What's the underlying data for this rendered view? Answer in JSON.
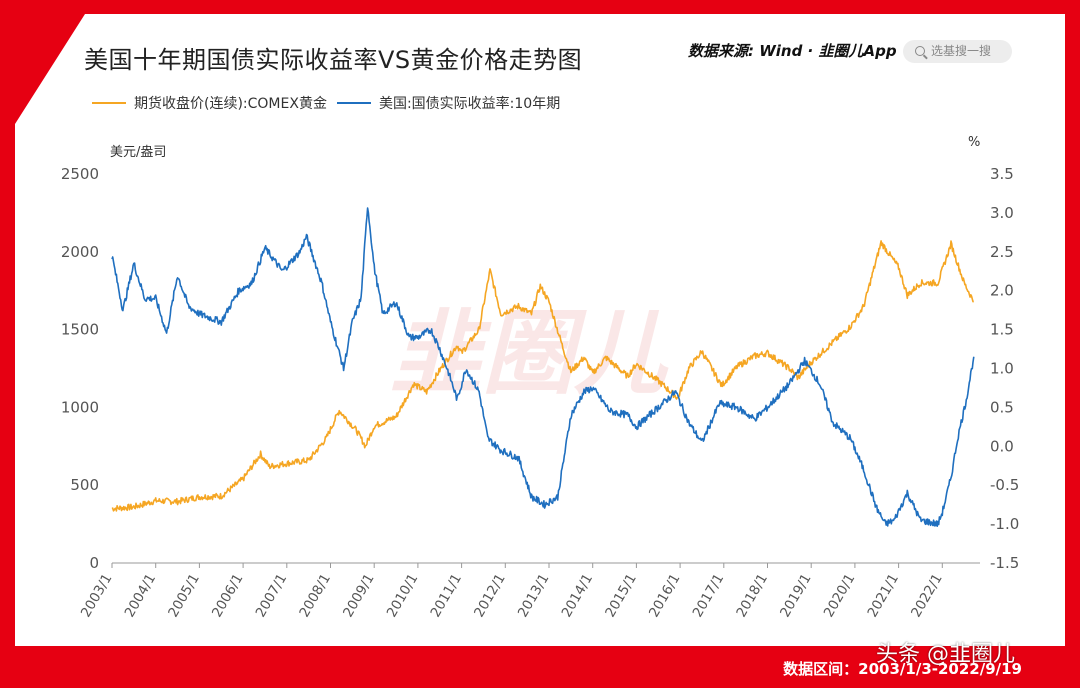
{
  "header": {
    "title": "美国十年期国债实际收益率VS黄金价格走势图",
    "source": "数据来源: Wind · 韭圈儿App",
    "search_placeholder": "选基搜一搜"
  },
  "footer": {
    "date_range": "数据区间：2003/1/3-2022/9/19",
    "credit": "头条 @韭圈儿"
  },
  "colors": {
    "gold": "#f5a623",
    "yield": "#1f6fbf",
    "brand_red": "#e60012"
  },
  "chart_data": {
    "type": "line",
    "title": "美国十年期国债实际收益率VS黄金价格走势图",
    "x_ticks": [
      "2003/1",
      "2004/1",
      "2005/1",
      "2006/1",
      "2007/1",
      "2008/1",
      "2009/1",
      "2010/1",
      "2011/1",
      "2012/1",
      "2013/1",
      "2014/1",
      "2015/1",
      "2016/1",
      "2017/1",
      "2018/1",
      "2019/1",
      "2020/1",
      "2021/1",
      "2022/1"
    ],
    "left_axis": {
      "label": "美元/盎司",
      "range": [
        0,
        2500
      ],
      "ticks": [
        "0",
        "500",
        "1000",
        "1500",
        "2000",
        "2500"
      ]
    },
    "right_axis": {
      "label": "%",
      "range": [
        -1.5,
        3.5
      ],
      "ticks": [
        "-1.5",
        "-1.0",
        "-0.5",
        "0.0",
        "0.5",
        "1.0",
        "1.5",
        "2.0",
        "2.5",
        "3.0",
        "3.5"
      ]
    },
    "legend_position": "top-left",
    "grid": false,
    "series": [
      {
        "name": "期货收盘价(连续):COMEX黄金",
        "axis": "left",
        "points": [
          [
            2003.0,
            350
          ],
          [
            2003.5,
            360
          ],
          [
            2004.0,
            400
          ],
          [
            2004.5,
            395
          ],
          [
            2005.0,
            425
          ],
          [
            2005.5,
            430
          ],
          [
            2006.0,
            540
          ],
          [
            2006.4,
            700
          ],
          [
            2006.6,
            620
          ],
          [
            2007.0,
            640
          ],
          [
            2007.5,
            660
          ],
          [
            2007.9,
            800
          ],
          [
            2008.2,
            980
          ],
          [
            2008.6,
            850
          ],
          [
            2008.8,
            750
          ],
          [
            2009.0,
            880
          ],
          [
            2009.5,
            940
          ],
          [
            2009.9,
            1150
          ],
          [
            2010.2,
            1100
          ],
          [
            2010.5,
            1240
          ],
          [
            2010.9,
            1400
          ],
          [
            2011.0,
            1350
          ],
          [
            2011.4,
            1500
          ],
          [
            2011.65,
            1880
          ],
          [
            2011.9,
            1600
          ],
          [
            2012.3,
            1650
          ],
          [
            2012.6,
            1600
          ],
          [
            2012.8,
            1780
          ],
          [
            2013.0,
            1680
          ],
          [
            2013.3,
            1400
          ],
          [
            2013.5,
            1230
          ],
          [
            2013.8,
            1320
          ],
          [
            2014.0,
            1220
          ],
          [
            2014.3,
            1320
          ],
          [
            2014.8,
            1200
          ],
          [
            2015.0,
            1280
          ],
          [
            2015.5,
            1170
          ],
          [
            2015.95,
            1060
          ],
          [
            2016.2,
            1250
          ],
          [
            2016.5,
            1360
          ],
          [
            2016.95,
            1140
          ],
          [
            2017.3,
            1260
          ],
          [
            2017.7,
            1330
          ],
          [
            2018.0,
            1350
          ],
          [
            2018.5,
            1250
          ],
          [
            2018.7,
            1190
          ],
          [
            2019.0,
            1290
          ],
          [
            2019.5,
            1420
          ],
          [
            2019.9,
            1520
          ],
          [
            2020.2,
            1650
          ],
          [
            2020.6,
            2060
          ],
          [
            2021.0,
            1900
          ],
          [
            2021.2,
            1720
          ],
          [
            2021.5,
            1800
          ],
          [
            2021.9,
            1800
          ],
          [
            2022.2,
            2050
          ],
          [
            2022.5,
            1800
          ],
          [
            2022.72,
            1680
          ]
        ]
      },
      {
        "name": "美国:国债实际收益率:10年期",
        "axis": "right",
        "points": [
          [
            2003.0,
            2.45
          ],
          [
            2003.25,
            1.75
          ],
          [
            2003.5,
            2.35
          ],
          [
            2003.75,
            1.9
          ],
          [
            2004.0,
            1.9
          ],
          [
            2004.25,
            1.45
          ],
          [
            2004.5,
            2.2
          ],
          [
            2004.75,
            1.8
          ],
          [
            2005.0,
            1.7
          ],
          [
            2005.5,
            1.6
          ],
          [
            2005.9,
            2.0
          ],
          [
            2006.2,
            2.1
          ],
          [
            2006.5,
            2.55
          ],
          [
            2006.9,
            2.25
          ],
          [
            2007.3,
            2.5
          ],
          [
            2007.45,
            2.7
          ],
          [
            2007.8,
            2.1
          ],
          [
            2008.0,
            1.6
          ],
          [
            2008.3,
            1.0
          ],
          [
            2008.5,
            1.6
          ],
          [
            2008.7,
            1.9
          ],
          [
            2008.85,
            3.1
          ],
          [
            2009.0,
            2.3
          ],
          [
            2009.2,
            1.7
          ],
          [
            2009.5,
            1.85
          ],
          [
            2009.8,
            1.4
          ],
          [
            2010.0,
            1.4
          ],
          [
            2010.3,
            1.5
          ],
          [
            2010.5,
            1.25
          ],
          [
            2010.7,
            0.95
          ],
          [
            2010.9,
            0.6
          ],
          [
            2011.1,
            1.0
          ],
          [
            2011.4,
            0.7
          ],
          [
            2011.6,
            0.1
          ],
          [
            2011.9,
            -0.05
          ],
          [
            2012.3,
            -0.15
          ],
          [
            2012.6,
            -0.65
          ],
          [
            2012.9,
            -0.75
          ],
          [
            2013.2,
            -0.65
          ],
          [
            2013.5,
            0.4
          ],
          [
            2013.8,
            0.7
          ],
          [
            2014.0,
            0.75
          ],
          [
            2014.4,
            0.45
          ],
          [
            2014.8,
            0.4
          ],
          [
            2015.0,
            0.25
          ],
          [
            2015.4,
            0.45
          ],
          [
            2015.9,
            0.7
          ],
          [
            2016.2,
            0.3
          ],
          [
            2016.5,
            0.05
          ],
          [
            2016.9,
            0.55
          ],
          [
            2017.3,
            0.5
          ],
          [
            2017.7,
            0.35
          ],
          [
            2018.0,
            0.5
          ],
          [
            2018.5,
            0.8
          ],
          [
            2018.85,
            1.1
          ],
          [
            2019.2,
            0.8
          ],
          [
            2019.5,
            0.3
          ],
          [
            2019.9,
            0.1
          ],
          [
            2020.2,
            -0.3
          ],
          [
            2020.5,
            -0.8
          ],
          [
            2020.7,
            -1.0
          ],
          [
            2020.9,
            -0.95
          ],
          [
            2021.2,
            -0.6
          ],
          [
            2021.5,
            -0.95
          ],
          [
            2021.9,
            -1.0
          ],
          [
            2022.0,
            -0.85
          ],
          [
            2022.2,
            -0.4
          ],
          [
            2022.35,
            0.1
          ],
          [
            2022.55,
            0.6
          ],
          [
            2022.72,
            1.15
          ]
        ]
      }
    ],
    "watermark": "韭圈儿"
  }
}
